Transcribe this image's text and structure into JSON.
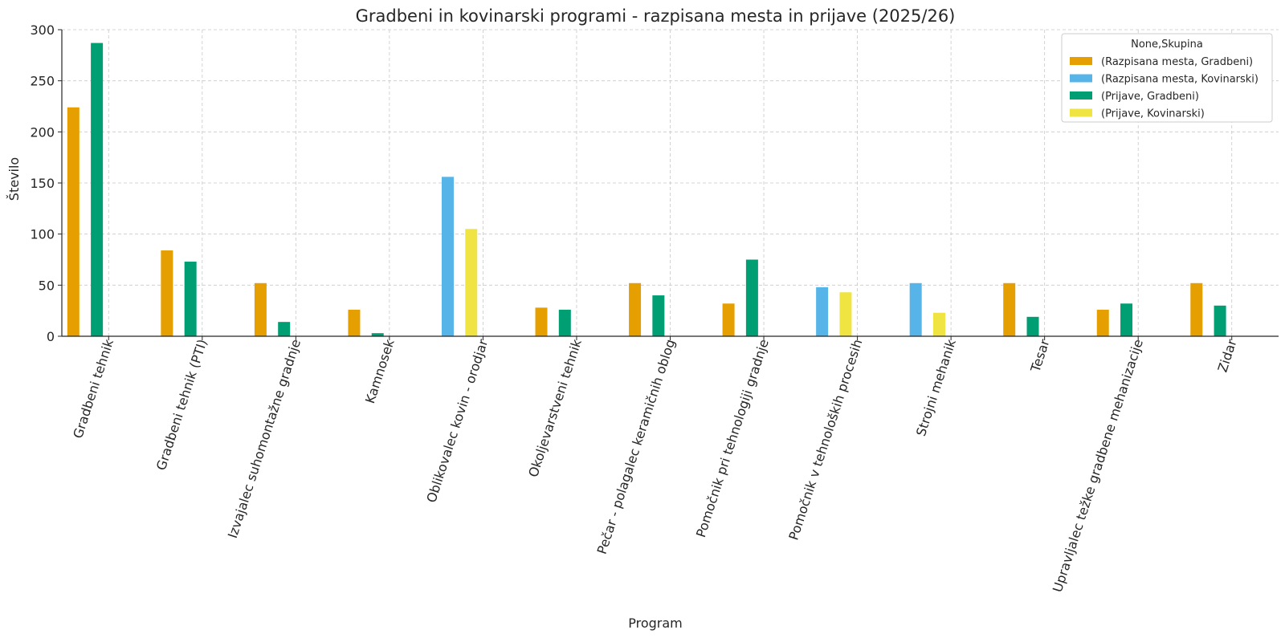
{
  "chart_data": {
    "type": "bar",
    "title": "Gradbeni in kovinarski programi - razpisana mesta in prijave (2025/26)",
    "xlabel": "Program",
    "ylabel": "Število",
    "ylim": [
      0,
      300
    ],
    "yticks": [
      "0",
      "50",
      "100",
      "150",
      "200",
      "250",
      "300"
    ],
    "grid": true,
    "legend_title": "None,Skupina",
    "legend_position": "top-right",
    "categories": [
      "Gradbeni tehnik",
      "Gradbeni tehnik (PTI)",
      "Izvajalec suhomontažne gradnje",
      "Kamnosek",
      "Oblikovalec kovin - orodjar",
      "Okoljevarstveni tehnik",
      "Pečar - polagalec keramičnih oblog",
      "Pomočnik pri tehnologiji gradnje",
      "Pomočnik v tehnoloških procesih",
      "Strojni mehanik",
      "Tesar",
      "Upravljalec težke gradbene mehanizacije",
      "Zidar"
    ],
    "series": [
      {
        "name": "(Razpisana mesta, Gradbeni)",
        "color": "#E69F00",
        "values": [
          224,
          84,
          52,
          26,
          0,
          28,
          52,
          32,
          0,
          0,
          52,
          26,
          52
        ]
      },
      {
        "name": "(Razpisana mesta, Kovinarski)",
        "color": "#56B4E9",
        "values": [
          0,
          0,
          0,
          0,
          156,
          0,
          0,
          0,
          48,
          52,
          0,
          0,
          0
        ]
      },
      {
        "name": "(Prijave, Gradbeni)",
        "color": "#009E73",
        "values": [
          287,
          73,
          14,
          3,
          0,
          26,
          40,
          75,
          0,
          0,
          19,
          32,
          30
        ]
      },
      {
        "name": "(Prijave, Kovinarski)",
        "color": "#F0E442",
        "values": [
          0,
          0,
          0,
          0,
          105,
          0,
          0,
          0,
          43,
          23,
          0,
          0,
          0
        ]
      }
    ]
  }
}
